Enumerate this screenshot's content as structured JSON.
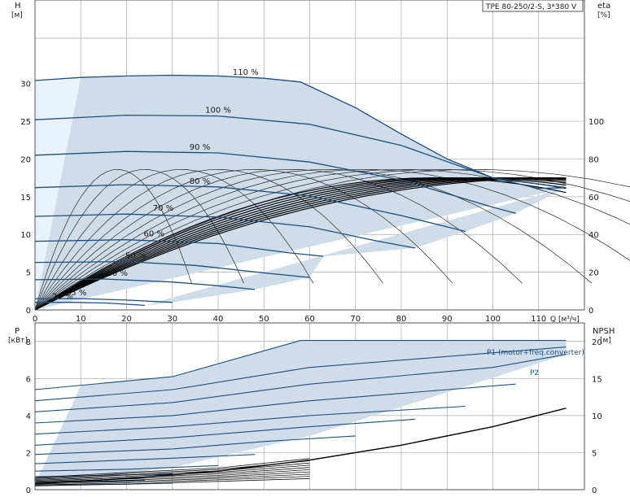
{
  "colors": {
    "envelope_fill": "#cfdce9",
    "envelope_light": "#eaf2fb",
    "curve": "#1e4f7e",
    "efficiency_curve": "#000000",
    "grid": "#a9a9a9",
    "frame": "#555555"
  },
  "title_box": "TPE 80-250/2-S, 3*380 V",
  "chart_data": [
    {
      "type": "line",
      "title": "",
      "xlabel": "Q [м³/ч]",
      "ylabel_left": "H",
      "ylabel_left_unit": "[м]",
      "ylabel_right": "eta",
      "ylabel_right_unit": "[%]",
      "xlim": [
        0,
        120
      ],
      "xticks": [
        "0",
        "10",
        "20",
        "30",
        "40",
        "50",
        "60",
        "70",
        "80",
        "90",
        "100",
        "110"
      ],
      "ylim_left": [
        0,
        36
      ],
      "yticks_left": [
        "0",
        "5",
        "10",
        "15",
        "20",
        "25",
        "30"
      ],
      "ylim_right": [
        0,
        144
      ],
      "yticks_right": [
        "0",
        "20",
        "40",
        "60",
        "80",
        "100"
      ],
      "grid": true,
      "speed_curves": [
        {
          "name": "110 %",
          "points": [
            [
              0,
              30.4
            ],
            [
              10,
              30.8
            ],
            [
              20,
              31.0
            ],
            [
              30,
              31.1
            ],
            [
              40,
              31.0
            ],
            [
              50,
              30.7
            ],
            [
              58,
              30.2
            ],
            [
              70,
              26.8
            ],
            [
              80,
              23.3
            ],
            [
              90,
              20.0
            ],
            [
              100,
              17.5
            ],
            [
              110,
              16.1
            ],
            [
              116,
              16.2
            ]
          ]
        },
        {
          "name": "100 %",
          "points": [
            [
              0,
              25.2
            ],
            [
              20,
              25.8
            ],
            [
              40,
              25.7
            ],
            [
              60,
              24.6
            ],
            [
              80,
              21.8
            ],
            [
              100,
              17.5
            ],
            [
              116,
              16.2
            ]
          ]
        },
        {
          "name": "90 %",
          "points": [
            [
              0,
              20.5
            ],
            [
              20,
              21.0
            ],
            [
              40,
              20.8
            ],
            [
              60,
              19.6
            ],
            [
              80,
              17.2
            ],
            [
              100,
              13.6
            ],
            [
              105,
              12.8
            ]
          ]
        },
        {
          "name": "80 %",
          "points": [
            [
              0,
              16.2
            ],
            [
              20,
              16.6
            ],
            [
              40,
              16.3
            ],
            [
              60,
              15.1
            ],
            [
              80,
              12.5
            ],
            [
              94,
              10.4
            ]
          ]
        },
        {
          "name": "70 %",
          "points": [
            [
              0,
              12.4
            ],
            [
              20,
              12.7
            ],
            [
              40,
              12.3
            ],
            [
              60,
              11.0
            ],
            [
              75,
              9.1
            ],
            [
              83,
              8.2
            ]
          ]
        },
        {
          "name": "60 %",
          "points": [
            [
              0,
              9.1
            ],
            [
              20,
              9.3
            ],
            [
              40,
              8.8
            ],
            [
              55,
              7.6
            ],
            [
              63,
              7.1
            ]
          ]
        },
        {
          "name": "50 %",
          "points": [
            [
              0,
              6.3
            ],
            [
              20,
              6.4
            ],
            [
              35,
              5.9
            ],
            [
              50,
              4.9
            ],
            [
              60,
              4.3
            ]
          ]
        },
        {
          "name": "40 %",
          "points": [
            [
              0,
              4.0
            ],
            [
              15,
              4.1
            ],
            [
              30,
              3.7
            ],
            [
              40,
              3.2
            ],
            [
              48,
              2.7
            ]
          ]
        },
        {
          "name": "25 %",
          "points": [
            [
              0,
              1.5
            ],
            [
              10,
              1.5
            ],
            [
              20,
              1.3
            ],
            [
              30,
              1.0
            ]
          ]
        },
        {
          "name": "20 %",
          "points": [
            [
              0,
              1.0
            ],
            [
              8,
              1.0
            ],
            [
              16,
              0.9
            ],
            [
              24,
              0.6
            ]
          ]
        }
      ],
      "efficiency_curves": [
        {
          "peak_q": 18,
          "peak_eta": 76
        },
        {
          "peak_q": 24,
          "peak_eta": 76
        },
        {
          "peak_q": 32,
          "peak_eta": 76
        },
        {
          "peak_q": 40,
          "peak_eta": 76
        },
        {
          "peak_q": 48,
          "peak_eta": 76
        },
        {
          "peak_q": 56,
          "peak_eta": 76
        },
        {
          "peak_q": 64,
          "peak_eta": 76
        },
        {
          "peak_q": 72,
          "peak_eta": 76
        },
        {
          "peak_q": 80,
          "peak_eta": 76
        },
        {
          "peak_q": 88,
          "peak_eta": 76
        },
        {
          "peak_q": 96,
          "peak_eta": 76
        }
      ],
      "efficiency_max_q": 116,
      "efficiency_max_eta": 70
    },
    {
      "type": "line",
      "title": "",
      "xlabel": "",
      "ylabel_left": "P",
      "ylabel_left_unit": "[кВт]",
      "ylabel_right": "NPSH",
      "ylabel_right_unit": "[м]",
      "xlim": [
        0,
        120
      ],
      "ylim_left": [
        0,
        9
      ],
      "yticks_left": [
        "0",
        "2",
        "4",
        "6",
        "8"
      ],
      "ylim_right": [
        0,
        22.5
      ],
      "yticks_right": [
        "0",
        "5",
        "10",
        "15",
        "20"
      ],
      "grid": true,
      "annotations": [
        "P1 (motor+freq.converter)",
        "P2"
      ],
      "power_curves": [
        {
          "points": [
            [
              0,
              5.4
            ],
            [
              30,
              6.1
            ],
            [
              58,
              8.05
            ],
            [
              116,
              8.05
            ]
          ]
        },
        {
          "points": [
            [
              0,
              4.8
            ],
            [
              30,
              5.4
            ],
            [
              60,
              6.6
            ],
            [
              116,
              7.7
            ]
          ]
        },
        {
          "points": [
            [
              0,
              4.2
            ],
            [
              30,
              4.7
            ],
            [
              60,
              5.7
            ],
            [
              100,
              6.6
            ],
            [
              116,
              7.3
            ]
          ]
        },
        {
          "points": [
            [
              0,
              3.6
            ],
            [
              30,
              4.0
            ],
            [
              60,
              4.8
            ],
            [
              105,
              5.7
            ]
          ]
        },
        {
          "points": [
            [
              0,
              3.0
            ],
            [
              30,
              3.4
            ],
            [
              60,
              4.0
            ],
            [
              94,
              4.5
            ]
          ]
        },
        {
          "points": [
            [
              0,
              2.4
            ],
            [
              30,
              2.8
            ],
            [
              60,
              3.4
            ],
            [
              83,
              3.8
            ]
          ]
        },
        {
          "points": [
            [
              0,
              1.9
            ],
            [
              30,
              2.2
            ],
            [
              50,
              2.6
            ],
            [
              70,
              2.9
            ]
          ]
        },
        {
          "points": [
            [
              0,
              1.4
            ],
            [
              30,
              1.7
            ],
            [
              48,
              1.9
            ]
          ]
        },
        {
          "points": [
            [
              0,
              1.0
            ],
            [
              20,
              1.1
            ],
            [
              40,
              1.3
            ]
          ]
        },
        {
          "points": [
            [
              0,
              0.7
            ],
            [
              20,
              0.8
            ],
            [
              30,
              0.85
            ]
          ]
        },
        {
          "points": [
            [
              0,
              0.4
            ],
            [
              15,
              0.45
            ],
            [
              24,
              0.5
            ]
          ]
        },
        {
          "points": [
            [
              0,
              0.25
            ],
            [
              20,
              0.3
            ],
            [
              30,
              0.35
            ]
          ]
        }
      ],
      "npsh_curve": {
        "points": [
          [
            0,
            0.8
          ],
          [
            20,
            1.5
          ],
          [
            40,
            2.5
          ],
          [
            60,
            4.0
          ],
          [
            80,
            6.0
          ],
          [
            100,
            8.5
          ],
          [
            116,
            11.0
          ]
        ]
      }
    }
  ]
}
